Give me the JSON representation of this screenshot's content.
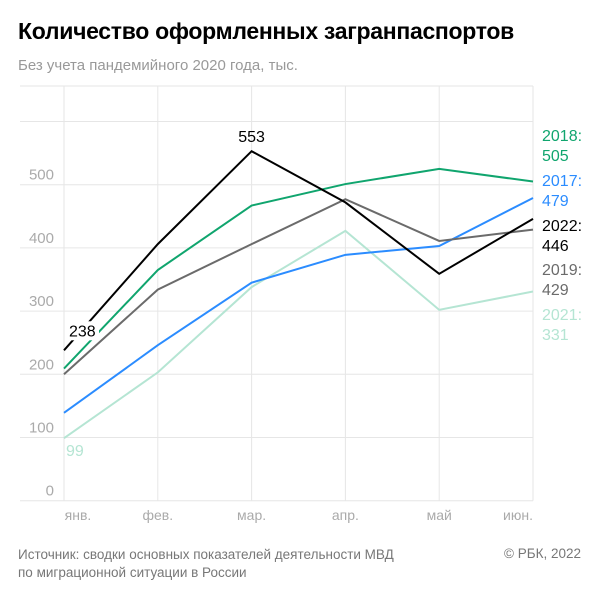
{
  "title": "Количество оформленных загранпаспортов",
  "subtitle": "Без учета пандемийного 2020 года, тыс.",
  "source_line1": "Источник: сводки основных показателей деятельности МВД",
  "source_line2": "по миграционной ситуации в России",
  "copyright": "© РБК, 2022",
  "chart_data": {
    "type": "line",
    "title": "Количество оформленных загранпаспортов",
    "subtitle": "Без учета пандемийного 2020 года, тыс.",
    "categories": [
      "янв.",
      "фев.",
      "мар.",
      "апр.",
      "май",
      "июн."
    ],
    "yticks": [
      0,
      100,
      200,
      300,
      400,
      500
    ],
    "ylim": [
      0,
      600
    ],
    "grid": true,
    "series": [
      {
        "name": "2021",
        "color": "#b5e5d3",
        "values": [
          99,
          203,
          338,
          427,
          302,
          331
        ],
        "end_label": "2021:",
        "end_value": "331"
      },
      {
        "name": "2017",
        "color": "#2b8cff",
        "values": [
          139,
          246,
          345,
          389,
          403,
          479
        ],
        "end_label": "2017:",
        "end_value": "479"
      },
      {
        "name": "2019",
        "color": "#6b6b6b",
        "values": [
          200,
          334,
          406,
          477,
          411,
          429
        ],
        "end_label": "2019:",
        "end_value": "429"
      },
      {
        "name": "2018",
        "color": "#10a56e",
        "values": [
          209,
          365,
          467,
          501,
          525,
          505
        ],
        "end_label": "2018:",
        "end_value": "505"
      },
      {
        "name": "2022",
        "color": "#000000",
        "values": [
          238,
          406,
          553,
          472,
          359,
          446
        ],
        "end_label": "2022:",
        "end_value": "446"
      }
    ],
    "annotations": [
      {
        "series": "2022",
        "category": "янв.",
        "text": "238"
      },
      {
        "series": "2022",
        "category": "мар.",
        "text": "553"
      },
      {
        "series": "2021",
        "category": "янв.",
        "text": "99"
      }
    ]
  }
}
